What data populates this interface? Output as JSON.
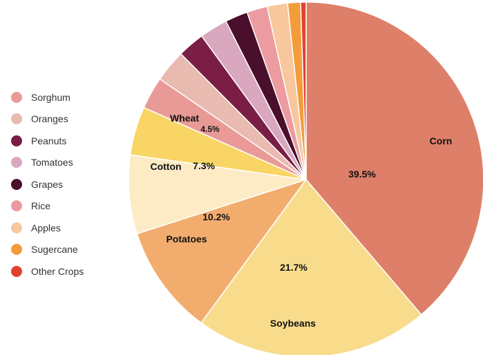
{
  "chart_data": {
    "type": "pie",
    "title": "",
    "legend_position": "left",
    "slices": [
      {
        "name": "Corn",
        "value": 39.5,
        "value_label": "39.5%",
        "color": "#de7f6a"
      },
      {
        "name": "Soybeans",
        "value": 21.7,
        "value_label": "21.7%",
        "color": "#f8dc8c"
      },
      {
        "name": "Potatoes",
        "value": 10.2,
        "value_label": "10.2%",
        "color": "#f2ad6e"
      },
      {
        "name": "Cotton",
        "value": 7.3,
        "value_label": "7.3%",
        "color": "#fcebc4"
      },
      {
        "name": "Wheat",
        "value": 4.5,
        "value_label": "4.5%",
        "color": "#f8d564"
      },
      {
        "name": "Sorghum",
        "value": 3.0,
        "color": "#e99a97"
      },
      {
        "name": "Oranges",
        "value": 3.0,
        "color": "#e8bab0"
      },
      {
        "name": "Peanuts",
        "value": 2.5,
        "color": "#7b1e46"
      },
      {
        "name": "Tomatoes",
        "value": 2.6,
        "color": "#d9a8bf"
      },
      {
        "name": "Grapes",
        "value": 2.1,
        "color": "#4a0f2c"
      },
      {
        "name": "Rice",
        "value": 1.9,
        "color": "#ec9ba0"
      },
      {
        "name": "Apples",
        "value": 1.9,
        "color": "#f8c79e"
      },
      {
        "name": "Sugercane",
        "value": 1.2,
        "color": "#f39c3a"
      },
      {
        "name": "Other Crops",
        "value": 0.5,
        "color": "#e2412f"
      }
    ],
    "legend": [
      "Sorghum",
      "Oranges",
      "Peanuts",
      "Tomatoes",
      "Grapes",
      "Rice",
      "Apples",
      "Sugercane",
      "Other Crops"
    ]
  }
}
